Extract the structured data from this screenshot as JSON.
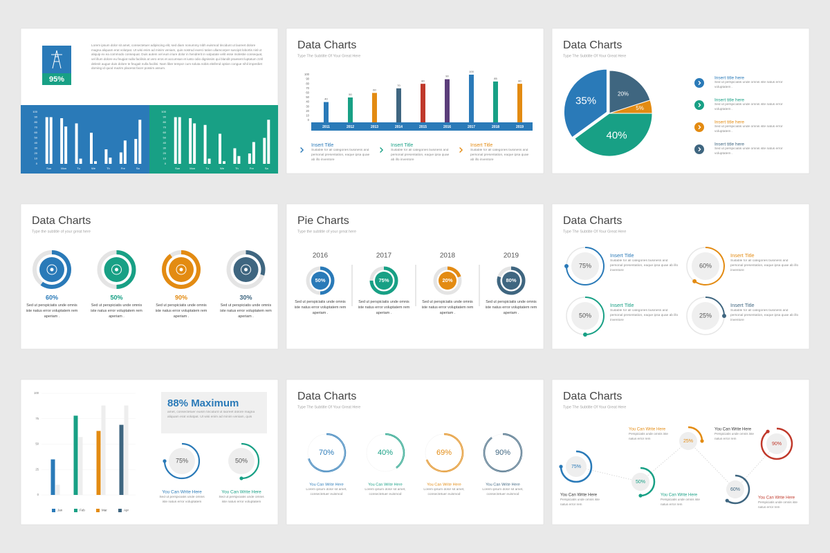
{
  "slides": [
    {
      "badge": {
        "value": 95,
        "label": "95%"
      },
      "paragraph": "Lorem ipsum dolor sit amet, consectetuer adipiscing elit, sed diam nonummy nibh euismod tincidunt ut laoreet dolore magna aliquam erat volutpat. Ut wisi enim ad minim veniam, quis nostrud exerci tation ullamcorper suscipit lobortis nisl ut aliquip ex ea commodo consequat. Duis autem vel eum iriure dolor in hendrerit in vulputate velit esse molestie consequat, vel illum dolore eu feugiat nulla facilisis at vero eros et accumsan et iusto odio dignissim qui blandit praesent luptatum zzril delenit augue duis dolore te feugait nulla facilisi. Nam liber tempor cum soluta nobis eleifend option congue nihil imperdiet doming id quod mazim placerat facer possim assum.",
      "chart": {
        "ylim": [
          0,
          100
        ],
        "yticks": [
          0,
          10,
          20,
          30,
          40,
          50,
          60,
          70,
          80,
          90,
          100
        ],
        "categories": [
          "Sun",
          "Mon",
          "Tu",
          "We",
          "Th",
          "Fre",
          "Sa"
        ]
      },
      "panels": [
        {
          "color": "#2a7ab8",
          "series": [
            {
              "values": [
                90,
                88,
                78,
                60,
                28,
                22,
                48
              ]
            },
            {
              "values": [
                90,
                72,
                10,
                5,
                12,
                45,
                85
              ]
            }
          ]
        },
        {
          "color": "#18a085",
          "series": [
            {
              "values": [
                90,
                88,
                75,
                58,
                30,
                20,
                50
              ]
            },
            {
              "values": [
                90,
                78,
                10,
                5,
                15,
                42,
                85
              ]
            }
          ]
        }
      ]
    },
    {
      "title": "Data Charts",
      "subtitle": "Type The Subtitle Of Your Great Here",
      "chart": {
        "ylim": [
          0,
          100
        ],
        "yticks": [
          0,
          10,
          20,
          30,
          40,
          50,
          60,
          70,
          80,
          90,
          100
        ],
        "categories": [
          "2011",
          "2012",
          "2013",
          "2014",
          "2015",
          "2016",
          "2017",
          "2018",
          "2019"
        ],
        "values": [
          40,
          50,
          60,
          70,
          80,
          90,
          100,
          85,
          80
        ],
        "colors": [
          "#2a7ab8",
          "#18a085",
          "#e38b12",
          "#3f6680",
          "#c0392b",
          "#5b3e7a",
          "#2a7ab8",
          "#18a085",
          "#e38b12"
        ],
        "axis_color": "#2a7ab8"
      },
      "items": [
        {
          "title": "Insert Title",
          "color": "#2a7ab8",
          "text": "Suitable for all categories business and personal presentation, eaque ipsa quae ab illo inventore"
        },
        {
          "title": "Insert Title",
          "color": "#18a085",
          "text": "Suitable for all categories business and personal presentation, eaque ipsa quae ab illo inventore"
        },
        {
          "title": "Insert Title",
          "color": "#e38b12",
          "text": "Suitable for all categories business and personal presentation, eaque ipsa quae ab illo inventore"
        }
      ]
    },
    {
      "title": "Data Charts",
      "subtitle": "Type The Subtitle Of Your Great Here",
      "slices": [
        {
          "value": 20,
          "label": "20%",
          "color": "#3f6680"
        },
        {
          "value": 5,
          "label": "5%",
          "color": "#e38b12"
        },
        {
          "value": 40,
          "label": "40%",
          "color": "#18a085"
        },
        {
          "value": 35,
          "label": "35%",
          "color": "#2a7ab8"
        }
      ],
      "items": [
        {
          "title": "Insert title here",
          "color": "#2a7ab8",
          "text": "Sed ut perspiciatis unde omnis iste natus error voluptatem ."
        },
        {
          "title": "Insert title here",
          "color": "#18a085",
          "text": "Sed ut perspiciatis unde omnis iste natus error voluptatem ."
        },
        {
          "title": "Insert title here",
          "color": "#e38b12",
          "text": "Sed ut perspiciatis unde omnis iste natus error voluptatem ."
        },
        {
          "title": "Insert title here",
          "color": "#3f6680",
          "text": "Sed ut perspiciatis unde omnis iste natus error voluptatem ."
        }
      ]
    },
    {
      "title": "Data Charts",
      "subtitle": "Type the subtitle of your great here",
      "items": [
        {
          "value": 60,
          "label": "60%",
          "color": "#2a7ab8",
          "text": "Sed ut perspiciatis unde omnis iste natus error voluptatem rem aperiam ."
        },
        {
          "value": 50,
          "label": "50%",
          "color": "#18a085",
          "text": "Sed ut perspiciatis unde omnis iste natus error voluptatem rem aperiam ."
        },
        {
          "value": 90,
          "label": "90%",
          "color": "#e38b12",
          "text": "Sed ut perspiciatis unde omnis iste natus error voluptatem rem aperiam ."
        },
        {
          "value": 30,
          "label": "30%",
          "color": "#3f6680",
          "text": "Sed ut perspiciatis unde omnis iste natus error voluptatem rem aperiam ."
        }
      ]
    },
    {
      "title": "Pie Charts",
      "subtitle": "Type the subtitle of your great here",
      "items": [
        {
          "year": "2016",
          "value": 50,
          "label": "50%",
          "color": "#2a7ab8",
          "text": "Sed ut perspiciatis unde omnis iste natus error voluptatem rem aperiam ."
        },
        {
          "year": "2017",
          "value": 75,
          "label": "75%",
          "color": "#18a085",
          "text": "Sed ut perspiciatis unde omnis iste natus error voluptatem rem aperiam ."
        },
        {
          "year": "2018",
          "value": 20,
          "label": "20%",
          "color": "#e38b12",
          "text": "Sed ut perspiciatis unde omnis iste natus error voluptatem rem aperiam ."
        },
        {
          "year": "2019",
          "value": 80,
          "label": "80%",
          "color": "#3f6680",
          "text": "Sed ut perspiciatis unde omnis iste natus error voluptatem rem aperiam ."
        }
      ]
    },
    {
      "title": "Data Charts",
      "subtitle": "Type The Subtitle Of Your Great Here",
      "items": [
        {
          "value": 75,
          "label": "75%",
          "color": "#2a7ab8",
          "title": "Insert Title",
          "text": "Suitable for all categories business and personal presentation, eaque ipsa quae ab illo inventore"
        },
        {
          "value": 60,
          "label": "60%",
          "color": "#e38b12",
          "title": "Insert Title",
          "text": "Suitable for all categories business and personal presentation, eaque ipsa quae ab illo inventore"
        },
        {
          "value": 50,
          "label": "50%",
          "color": "#18a085",
          "title": "Insert Title",
          "text": "Suitable for all categories business and personal presentation, eaque ipsa quae ab illo inventore"
        },
        {
          "value": 25,
          "label": "25%",
          "color": "#3f6680",
          "title": "Insert Title",
          "text": "Suitable for all categories business and personal presentation, eaque ipsa quae ab illo inventore"
        }
      ]
    },
    {
      "chart": {
        "ylim": [
          0,
          100
        ],
        "yticks": [
          0,
          25,
          50,
          75,
          100
        ],
        "categories": [
          "Jan",
          "Feb",
          "Mar",
          "Apr"
        ],
        "values": [
          35,
          78,
          63,
          69
        ],
        "secondary_values": [
          10,
          57,
          88,
          88
        ],
        "colors": [
          "#2a7ab8",
          "#18a085",
          "#e38b12",
          "#3f6680"
        ],
        "secondary_color": "#eeeeee"
      },
      "heading": "88% Maximum",
      "paragraph": "amet, consectetuer euism tincidunt ut laoreet dolore magna aliquam erat volutpat. Ut wisi enim ad minim veniam, quis",
      "items": [
        {
          "value": 75,
          "label": "75%",
          "color": "#2a7ab8",
          "title": "You Can Write Here",
          "text": "Sed ut perspiciatis unde omnis iste natus error voluptatem"
        },
        {
          "value": 50,
          "label": "50%",
          "color": "#18a085",
          "title": "You Can Write Here",
          "text": "Sed ut perspiciatis unde omnis iste natus error voluptatem"
        }
      ]
    },
    {
      "title": "Data Charts",
      "subtitle": "Type The Subtitle Of Your Great Here",
      "items": [
        {
          "value": 70,
          "label": "70%",
          "color": "#2a7ab8",
          "title": "You Can Write Here",
          "text": "Lorem ipsum dolor sit amet, consectetuer euismod"
        },
        {
          "value": 40,
          "label": "40%",
          "color": "#18a085",
          "title": "You Can Write Here",
          "text": "Lorem ipsum dolor sit amet, consectetuer euismod"
        },
        {
          "value": 69,
          "label": "69%",
          "color": "#e38b12",
          "title": "You Can Write Here",
          "text": "Lorem ipsum dolor sit amet, consectetuer euismod"
        },
        {
          "value": 90,
          "label": "90%",
          "color": "#3f6680",
          "title": "You Can Write Here",
          "text": "Lorem ipsum dolor sit amet, consectetuer euismod"
        }
      ]
    },
    {
      "title": "Data Charts",
      "subtitle": "Type The Subtitle Of Your Great Here",
      "items": [
        {
          "value": 75,
          "label": "75%",
          "color": "#2a7ab8",
          "title": "You Can Write Here",
          "title_color": "#333333",
          "text": "Perspiciatis unde omnis iste natus error rem"
        },
        {
          "value": 50,
          "label": "50%",
          "color": "#18a085",
          "title": "You Can Write Here",
          "title_color": "#18a085",
          "text": "Perspiciatis unde omnis iste natus error rem"
        },
        {
          "value": 25,
          "label": "25%",
          "color": "#e38b12",
          "title": "You Can Write Here",
          "title_color": "#e38b12",
          "text": "Perspiciatis unde omnis iste natus error rem"
        },
        {
          "value": 60,
          "label": "60%",
          "color": "#3f6680",
          "title": "You Can Write Here",
          "title_color": "#333333",
          "text": "Perspiciatis unde omnis iste natus error rem"
        },
        {
          "value": 90,
          "label": "90%",
          "color": "#c0392b",
          "title": "You Can Write Here",
          "title_color": "#c0392b",
          "text": "Perspiciatis unde omnis iste natus error rem"
        }
      ]
    }
  ]
}
